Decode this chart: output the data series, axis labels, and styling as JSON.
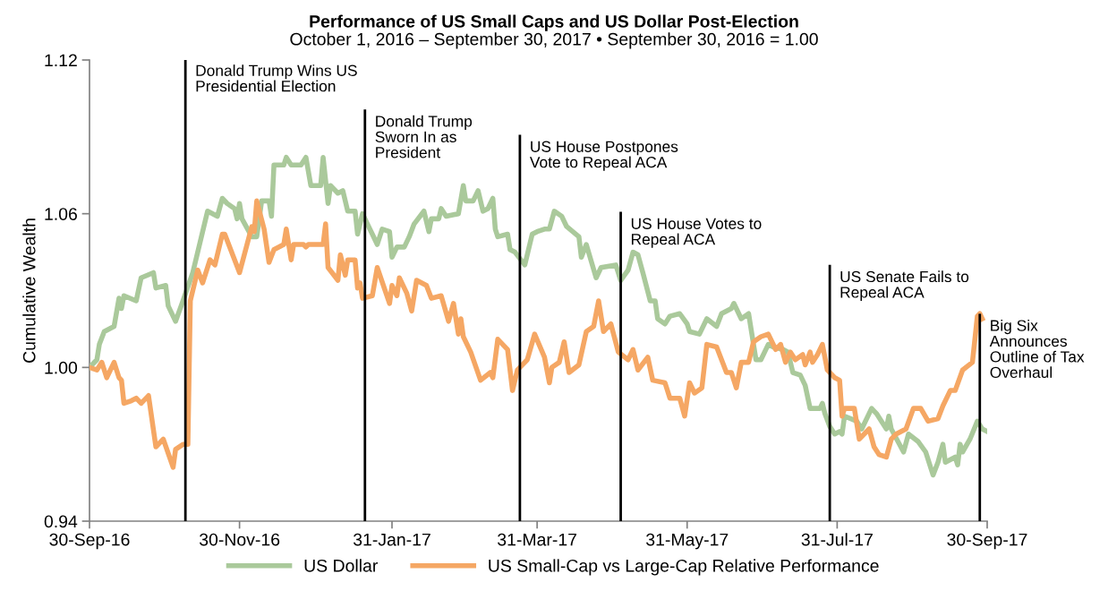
{
  "chart_data": {
    "type": "line",
    "title": "Performance of US Small Caps and US Dollar Post-Election",
    "subtitle": "October 1, 2016 – September 30, 2017 • September 30, 2016 = 1.00",
    "ylabel": "Cumulative Wealth",
    "xlim": [
      "2016-09-30",
      "2017-09-30"
    ],
    "xticks": [
      {
        "value": "2016-09-30",
        "label": "30-Sep-16"
      },
      {
        "value": "2016-11-30",
        "label": "30-Nov-16"
      },
      {
        "value": "2017-01-31",
        "label": "31-Jan-17"
      },
      {
        "value": "2017-03-31",
        "label": "31-Mar-17"
      },
      {
        "value": "2017-05-31",
        "label": "31-May-17"
      },
      {
        "value": "2017-07-31",
        "label": "31-Jul-17"
      },
      {
        "value": "2017-09-30",
        "label": "30-Sep-17"
      }
    ],
    "ylim": [
      0.94,
      1.12
    ],
    "yticks": [
      {
        "value": 0.94,
        "label": "0.94"
      },
      {
        "value": 1.0,
        "label": "1.00"
      },
      {
        "value": 1.06,
        "label": "1.06"
      },
      {
        "value": 1.12,
        "label": "1.12"
      }
    ],
    "grid": false,
    "legend": "bottom",
    "marker": "none",
    "line_style": "solid",
    "ref_lines": [
      {
        "axis": "x",
        "value": "2016-11-08",
        "label": "Donald Trump Wins US\nPresidential Election",
        "color": "#000000"
      },
      {
        "axis": "x",
        "value": "2017-01-20",
        "label": "Donald Trump\nSworn In as\nPresident",
        "color": "#000000"
      },
      {
        "axis": "x",
        "value": "2017-03-24",
        "label": "US House Postpones\nVote to Repeal ACA",
        "color": "#000000"
      },
      {
        "axis": "x",
        "value": "2017-05-04",
        "label": "US House Votes to\nRepeal ACA",
        "color": "#000000"
      },
      {
        "axis": "x",
        "value": "2017-07-28",
        "label": "US Senate Fails to\nRepeal ACA",
        "color": "#000000"
      },
      {
        "axis": "x",
        "value": "2017-09-27",
        "label": "Big Six\nAnnounces\nOutline of Tax\nOverhaul",
        "color": "#000000"
      }
    ],
    "series": [
      {
        "name": "US Dollar",
        "color": "#aac99b",
        "x": [
          "2016-09-30",
          "2016-10-03",
          "2016-10-04",
          "2016-10-06",
          "2016-10-10",
          "2016-10-12",
          "2016-10-13",
          "2016-10-14",
          "2016-10-19",
          "2016-10-21",
          "2016-10-26",
          "2016-10-27",
          "2016-10-31",
          "2016-11-01",
          "2016-11-04",
          "2016-11-07",
          "2016-11-11",
          "2016-11-14",
          "2016-11-17",
          "2016-11-21",
          "2016-11-23",
          "2016-11-25",
          "2016-11-28",
          "2016-11-29",
          "2016-11-30",
          "2016-12-01",
          "2016-12-05",
          "2016-12-07",
          "2016-12-09",
          "2016-12-12",
          "2016-12-13",
          "2016-12-14",
          "2016-12-18",
          "2016-12-19",
          "2016-12-21",
          "2016-12-25",
          "2016-12-27",
          "2016-12-29",
          "2017-01-02",
          "2017-01-03",
          "2017-01-05",
          "2017-01-06",
          "2017-01-09",
          "2017-01-11",
          "2017-01-13",
          "2017-01-16",
          "2017-01-17",
          "2017-01-19",
          "2017-01-23",
          "2017-01-25",
          "2017-01-27",
          "2017-01-30",
          "2017-01-31",
          "2017-02-02",
          "2017-02-05",
          "2017-02-07",
          "2017-02-09",
          "2017-02-13",
          "2017-02-15",
          "2017-02-16",
          "2017-02-19",
          "2017-02-20",
          "2017-02-22",
          "2017-02-27",
          "2017-03-01",
          "2017-03-02",
          "2017-03-05",
          "2017-03-07",
          "2017-03-09",
          "2017-03-11",
          "2017-03-13",
          "2017-03-14",
          "2017-03-15",
          "2017-03-19",
          "2017-03-20",
          "2017-03-22",
          "2017-03-26",
          "2017-03-29",
          "2017-03-31",
          "2017-04-03",
          "2017-04-05",
          "2017-04-07",
          "2017-04-10",
          "2017-04-12",
          "2017-04-17",
          "2017-04-18",
          "2017-04-20",
          "2017-04-24",
          "2017-04-26",
          "2017-05-02",
          "2017-05-04",
          "2017-05-07",
          "2017-05-09",
          "2017-05-11",
          "2017-05-13",
          "2017-05-16",
          "2017-05-18",
          "2017-05-19",
          "2017-05-22",
          "2017-05-24",
          "2017-05-28",
          "2017-05-31",
          "2017-06-01",
          "2017-06-05",
          "2017-06-08",
          "2017-06-12",
          "2017-06-14",
          "2017-06-18",
          "2017-06-19",
          "2017-06-22",
          "2017-06-25",
          "2017-06-27",
          "2017-06-28",
          "2017-06-30",
          "2017-07-03",
          "2017-07-05",
          "2017-07-09",
          "2017-07-11",
          "2017-07-13",
          "2017-07-16",
          "2017-07-18",
          "2017-07-20",
          "2017-07-24",
          "2017-07-25",
          "2017-07-26",
          "2017-07-28",
          "2017-07-30",
          "2017-08-01",
          "2017-08-02",
          "2017-08-03",
          "2017-08-08",
          "2017-08-10",
          "2017-08-14",
          "2017-08-16",
          "2017-08-20",
          "2017-08-21",
          "2017-08-22",
          "2017-08-27",
          "2017-08-29",
          "2017-09-02",
          "2017-09-05",
          "2017-09-08",
          "2017-09-10",
          "2017-09-12",
          "2017-09-13",
          "2017-09-17",
          "2017-09-18",
          "2017-09-19",
          "2017-09-20",
          "2017-09-23",
          "2017-09-26",
          "2017-09-28",
          "2017-09-30"
        ],
        "values": [
          1.0,
          1.003,
          1.009,
          1.014,
          1.016,
          1.027,
          1.023,
          1.028,
          1.026,
          1.035,
          1.037,
          1.031,
          1.032,
          1.024,
          1.018,
          1.026,
          1.037,
          1.049,
          1.061,
          1.059,
          1.066,
          1.064,
          1.062,
          1.058,
          1.064,
          1.058,
          1.051,
          1.051,
          1.065,
          1.065,
          1.059,
          1.079,
          1.079,
          1.082,
          1.079,
          1.079,
          1.082,
          1.071,
          1.071,
          1.082,
          1.064,
          1.071,
          1.068,
          1.069,
          1.061,
          1.061,
          1.052,
          1.06,
          1.052,
          1.048,
          1.054,
          1.053,
          1.043,
          1.047,
          1.047,
          1.051,
          1.056,
          1.061,
          1.053,
          1.058,
          1.058,
          1.062,
          1.059,
          1.06,
          1.071,
          1.065,
          1.065,
          1.069,
          1.061,
          1.062,
          1.066,
          1.054,
          1.051,
          1.052,
          1.046,
          1.045,
          1.04,
          1.052,
          1.053,
          1.054,
          1.054,
          1.061,
          1.059,
          1.055,
          1.051,
          1.043,
          1.048,
          1.035,
          1.039,
          1.04,
          1.034,
          1.038,
          1.045,
          1.044,
          1.037,
          1.026,
          1.026,
          1.019,
          1.017,
          1.02,
          1.021,
          1.017,
          1.014,
          1.013,
          1.019,
          1.016,
          1.021,
          1.023,
          1.025,
          1.019,
          1.021,
          1.009,
          1.003,
          1.003,
          1.009,
          1.008,
          1.007,
          1.006,
          0.998,
          0.997,
          0.993,
          0.984,
          0.984,
          0.986,
          0.982,
          0.977,
          0.974,
          0.975,
          0.974,
          0.981,
          0.979,
          0.976,
          0.984,
          0.982,
          0.976,
          0.981,
          0.976,
          0.967,
          0.974,
          0.971,
          0.967,
          0.958,
          0.963,
          0.97,
          0.963,
          0.965,
          0.962,
          0.97,
          0.967,
          0.972,
          0.979,
          0.976,
          0.975
        ]
      },
      {
        "name": "US Small-Cap vs Large-Cap Relative Performance",
        "color": "#f5a764",
        "x": [
          "2016-09-30",
          "2016-10-03",
          "2016-10-05",
          "2016-10-07",
          "2016-10-10",
          "2016-10-12",
          "2016-10-13",
          "2016-10-14",
          "2016-10-17",
          "2016-10-19",
          "2016-10-21",
          "2016-10-24",
          "2016-10-27",
          "2016-10-30",
          "2016-11-03",
          "2016-11-04",
          "2016-11-07",
          "2016-11-09",
          "2016-11-10",
          "2016-11-13",
          "2016-11-15",
          "2016-11-18",
          "2016-11-20",
          "2016-11-23",
          "2016-11-24",
          "2016-11-30",
          "2016-12-05",
          "2016-12-06",
          "2016-12-07",
          "2016-12-10",
          "2016-12-12",
          "2016-12-14",
          "2016-12-18",
          "2016-12-19",
          "2016-12-21",
          "2016-12-22",
          "2016-12-26",
          "2016-12-27",
          "2016-12-28",
          "2017-01-03",
          "2017-01-04",
          "2017-01-05",
          "2017-01-09",
          "2017-01-10",
          "2017-01-12",
          "2017-01-13",
          "2017-01-16",
          "2017-01-17",
          "2017-01-18",
          "2017-01-19",
          "2017-01-23",
          "2017-01-25",
          "2017-01-30",
          "2017-01-31",
          "2017-02-02",
          "2017-02-03",
          "2017-02-06",
          "2017-02-08",
          "2017-02-10",
          "2017-02-14",
          "2017-02-16",
          "2017-02-20",
          "2017-02-23",
          "2017-02-25",
          "2017-02-27",
          "2017-02-28",
          "2017-03-01",
          "2017-03-04",
          "2017-03-08",
          "2017-03-12",
          "2017-03-13",
          "2017-03-15",
          "2017-03-19",
          "2017-03-21",
          "2017-03-23",
          "2017-03-27",
          "2017-03-30",
          "2017-04-03",
          "2017-04-05",
          "2017-04-06",
          "2017-04-09",
          "2017-04-11",
          "2017-04-13",
          "2017-04-17",
          "2017-04-20",
          "2017-04-23",
          "2017-04-25",
          "2017-04-27",
          "2017-04-30",
          "2017-05-03",
          "2017-05-07",
          "2017-05-09",
          "2017-05-11",
          "2017-05-15",
          "2017-05-17",
          "2017-05-22",
          "2017-05-24",
          "2017-05-28",
          "2017-05-30",
          "2017-06-01",
          "2017-06-03",
          "2017-06-06",
          "2017-06-08",
          "2017-06-12",
          "2017-06-16",
          "2017-06-18",
          "2017-06-20",
          "2017-06-22",
          "2017-06-25",
          "2017-06-27",
          "2017-06-30",
          "2017-07-03",
          "2017-07-06",
          "2017-07-08",
          "2017-07-10",
          "2017-07-12",
          "2017-07-14",
          "2017-07-17",
          "2017-07-18",
          "2017-07-20",
          "2017-07-21",
          "2017-07-23",
          "2017-07-25",
          "2017-07-27",
          "2017-07-30",
          "2017-08-01",
          "2017-08-02",
          "2017-08-03",
          "2017-08-07",
          "2017-08-09",
          "2017-08-13",
          "2017-08-15",
          "2017-08-17",
          "2017-08-20",
          "2017-08-22",
          "2017-08-24",
          "2017-08-28",
          "2017-08-31",
          "2017-09-03",
          "2017-09-06",
          "2017-09-10",
          "2017-09-12",
          "2017-09-15",
          "2017-09-17",
          "2017-09-20",
          "2017-09-24",
          "2017-09-26",
          "2017-09-27",
          "2017-09-28"
        ],
        "values": [
          1.0,
          0.999,
          1.002,
          0.996,
          1.002,
          0.996,
          0.995,
          0.986,
          0.987,
          0.988,
          0.986,
          0.989,
          0.969,
          0.972,
          0.961,
          0.968,
          0.97,
          0.97,
          1.026,
          1.038,
          1.033,
          1.042,
          1.04,
          1.052,
          1.052,
          1.037,
          1.055,
          1.053,
          1.065,
          1.054,
          1.041,
          1.046,
          1.048,
          1.054,
          1.042,
          1.048,
          1.048,
          1.047,
          1.048,
          1.048,
          1.056,
          1.039,
          1.034,
          1.044,
          1.036,
          1.042,
          1.042,
          1.031,
          1.033,
          1.027,
          1.028,
          1.039,
          1.025,
          1.032,
          1.028,
          1.035,
          1.029,
          1.022,
          1.034,
          1.032,
          1.027,
          1.028,
          1.018,
          1.025,
          1.013,
          1.019,
          1.012,
          1.006,
          0.995,
          0.998,
          0.996,
          1.011,
          1.007,
          0.991,
          0.999,
          1.003,
          1.013,
          1.004,
          0.994,
          1.0,
          1.002,
          1.01,
          0.998,
          1.001,
          1.014,
          1.016,
          1.026,
          1.014,
          1.017,
          1.006,
          1.003,
          1.007,
          0.999,
          1.004,
          0.995,
          0.994,
          0.988,
          0.988,
          0.981,
          0.994,
          0.99,
          0.992,
          1.009,
          1.008,
          0.998,
          0.998,
          0.992,
          1.002,
          1.002,
          1.01,
          1.012,
          1.013,
          1.007,
          1.009,
          1.002,
          1.006,
          1.003,
          1.005,
          1.001,
          1.006,
          1.002,
          1.005,
          1.009,
          0.999,
          0.996,
          0.995,
          0.981,
          0.984,
          0.984,
          0.972,
          0.976,
          0.969,
          0.966,
          0.965,
          0.972,
          0.974,
          0.976,
          0.984,
          0.984,
          0.979,
          0.98,
          0.985,
          0.991,
          0.991,
          0.999,
          1.002,
          1.02,
          1.021,
          1.019
        ]
      }
    ]
  }
}
